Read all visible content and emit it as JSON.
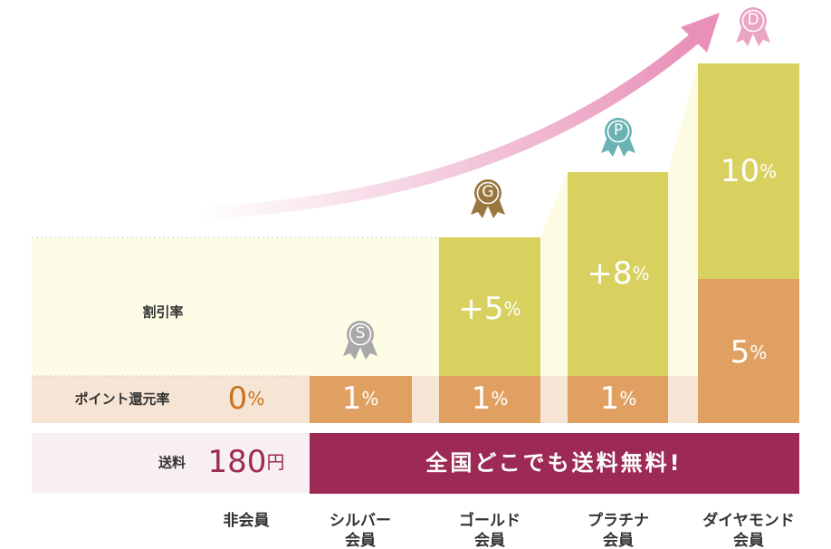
{
  "labels": {
    "discount": "割引率",
    "points": "ポイント還元率",
    "shipping": "送料"
  },
  "tiers": [
    {
      "name_lines": [
        "非会員"
      ],
      "points": {
        "number": "0",
        "unit": "%"
      },
      "shipping": {
        "number": "180",
        "unit": "円"
      }
    },
    {
      "badge": "S",
      "name_lines": [
        "シルバー",
        "会員"
      ],
      "points": {
        "number": "1",
        "unit": "%"
      }
    },
    {
      "badge": "G",
      "name_lines": [
        "ゴールド",
        "会員"
      ],
      "discount": {
        "number": "+5",
        "unit": "%"
      },
      "points": {
        "number": "1",
        "unit": "%"
      }
    },
    {
      "badge": "P",
      "name_lines": [
        "プラチナ",
        "会員"
      ],
      "discount": {
        "number": "+8",
        "unit": "%"
      },
      "points": {
        "number": "1",
        "unit": "%"
      }
    },
    {
      "badge": "D",
      "name_lines": [
        "ダイヤモンド",
        "会員"
      ],
      "discount": {
        "number": "10",
        "unit": "%"
      },
      "points": {
        "number": "5",
        "unit": "%"
      }
    }
  ],
  "free_shipping": "全国どこでも送料無料!"
}
